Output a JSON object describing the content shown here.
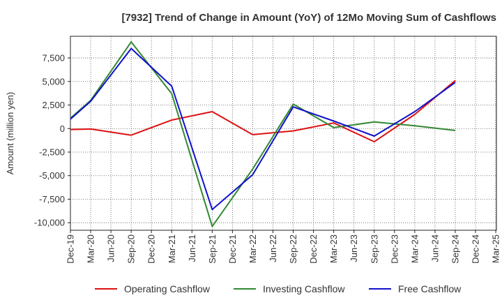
{
  "chart_data": {
    "type": "line",
    "title": "[7932]  Trend of Change in Amount (YoY) of 12Mo Moving Sum of Cashflows",
    "xlabel": "",
    "ylabel": "Amount (million yen)",
    "ylim": [
      -10800,
      9800
    ],
    "yticks": [
      -10000,
      -7500,
      -5000,
      -2500,
      0,
      2500,
      5000,
      7500
    ],
    "ytick_labels": [
      "-10,000",
      "-7,500",
      "-5,000",
      "-2,500",
      "0",
      "2,500",
      "5,000",
      "7,500"
    ],
    "categories": [
      "Dec-19",
      "Mar-20",
      "Jun-20",
      "Sep-20",
      "Dec-20",
      "Mar-21",
      "Jun-21",
      "Sep-21",
      "Dec-21",
      "Mar-22",
      "Jun-22",
      "Sep-22",
      "Dec-22",
      "Mar-23",
      "Jun-23",
      "Sep-23",
      "Dec-23",
      "Mar-24",
      "Jun-24",
      "Sep-24",
      "Dec-24",
      "Mar-25"
    ],
    "series": [
      {
        "name": "Operating Cashflow",
        "color": "#dd1111",
        "values": [
          -100,
          -50,
          null,
          -700,
          null,
          900,
          null,
          1800,
          null,
          -650,
          null,
          -250,
          null,
          600,
          null,
          -1400,
          null,
          1500,
          null,
          5100,
          null,
          null
        ]
      },
      {
        "name": "Investing Cashflow",
        "color": "#338833",
        "values": [
          1100,
          3000,
          null,
          9200,
          null,
          3700,
          null,
          -10400,
          null,
          -4300,
          null,
          2600,
          null,
          100,
          null,
          700,
          null,
          300,
          null,
          -200,
          null,
          null
        ]
      },
      {
        "name": "Free Cashflow",
        "color": "#1111cc",
        "values": [
          1000,
          2900,
          null,
          8500,
          null,
          4500,
          null,
          -8600,
          null,
          -4900,
          null,
          2300,
          null,
          800,
          null,
          -800,
          null,
          1800,
          null,
          4900,
          null,
          null
        ]
      }
    ],
    "grid": true,
    "legend": "bottom"
  }
}
